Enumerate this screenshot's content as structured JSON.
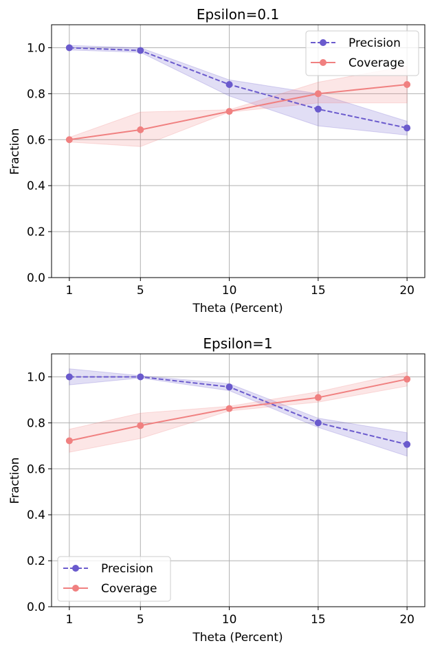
{
  "chart_data": [
    {
      "type": "line",
      "title": "Epsilon=0.1",
      "xlabel": "Theta (Percent)",
      "ylabel": "Fraction",
      "x": [
        1,
        5,
        10,
        15,
        20
      ],
      "xticks": [
        "1",
        "5",
        "10",
        "15",
        "20"
      ],
      "yticks": [
        "0.0",
        "0.2",
        "0.4",
        "0.6",
        "0.8",
        "1.0"
      ],
      "ylim": [
        0,
        1.1
      ],
      "grid": true,
      "legend_position": "top-right",
      "series": [
        {
          "name": "Precision",
          "color": "#6a5acd",
          "linestyle": "dashed",
          "marker": "circle",
          "values": [
            1.0,
            0.988,
            0.84,
            0.733,
            0.651
          ],
          "lower": [
            0.99,
            0.98,
            0.79,
            0.66,
            0.62
          ],
          "upper": [
            1.01,
            1.0,
            0.86,
            0.8,
            0.68
          ]
        },
        {
          "name": "Coverage",
          "color": "#f08080",
          "linestyle": "solid",
          "marker": "circle",
          "values": [
            0.6,
            0.643,
            0.723,
            0.8,
            0.84
          ],
          "lower": [
            0.59,
            0.57,
            0.72,
            0.76,
            0.76
          ],
          "upper": [
            0.61,
            0.72,
            0.73,
            0.85,
            0.92
          ]
        }
      ]
    },
    {
      "type": "line",
      "title": "Epsilon=1",
      "xlabel": "Theta (Percent)",
      "ylabel": "Fraction",
      "x": [
        1,
        5,
        10,
        15,
        20
      ],
      "xticks": [
        "1",
        "5",
        "10",
        "15",
        "20"
      ],
      "yticks": [
        "0.0",
        "0.2",
        "0.4",
        "0.6",
        "0.8",
        "1.0"
      ],
      "ylim": [
        0,
        1.1
      ],
      "grid": true,
      "legend_position": "bottom-left",
      "series": [
        {
          "name": "Precision",
          "color": "#6a5acd",
          "linestyle": "dashed",
          "marker": "circle",
          "values": [
            1.0,
            1.0,
            0.956,
            0.8,
            0.706
          ],
          "lower": [
            0.965,
            0.995,
            0.94,
            0.78,
            0.655
          ],
          "upper": [
            1.035,
            1.005,
            0.97,
            0.82,
            0.757
          ]
        },
        {
          "name": "Coverage",
          "color": "#f08080",
          "linestyle": "solid",
          "marker": "circle",
          "values": [
            0.722,
            0.788,
            0.862,
            0.91,
            0.99
          ],
          "lower": [
            0.672,
            0.732,
            0.852,
            0.89,
            0.96
          ],
          "upper": [
            0.772,
            0.842,
            0.872,
            0.935,
            1.02
          ]
        }
      ]
    }
  ]
}
